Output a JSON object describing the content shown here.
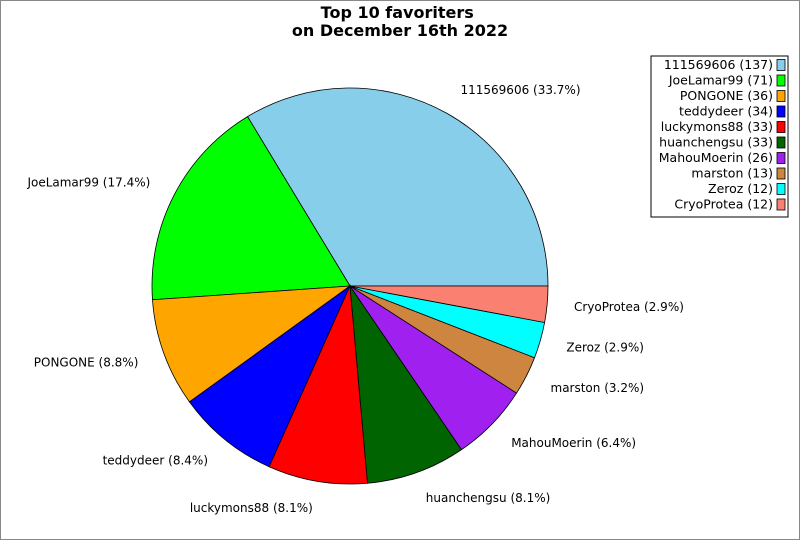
{
  "chart_data": {
    "type": "pie",
    "title": "Top 10 favoriters\non December 16th 2022",
    "slices": [
      {
        "name": "111569606",
        "value": 137,
        "percent_label": "111569606 (33.7%)",
        "legend_label": "111569606 (137)",
        "color": "#87ceeb"
      },
      {
        "name": "JoeLamar99",
        "value": 71,
        "percent_label": "JoeLamar99 (17.4%)",
        "legend_label": "JoeLamar99 (71)",
        "color": "#00ff00"
      },
      {
        "name": "PONGONE",
        "value": 36,
        "percent_label": "PONGONE (8.8%)",
        "legend_label": "PONGONE (36)",
        "color": "#ffa500"
      },
      {
        "name": "teddydeer",
        "value": 34,
        "percent_label": "teddydeer (8.4%)",
        "legend_label": "teddydeer (34)",
        "color": "#0000ff"
      },
      {
        "name": "luckymons88",
        "value": 33,
        "percent_label": "luckymons88 (8.1%)",
        "legend_label": "luckymons88 (33)",
        "color": "#ff0000"
      },
      {
        "name": "huanchengsu",
        "value": 33,
        "percent_label": "huanchengsu (8.1%)",
        "legend_label": "huanchengsu (33)",
        "color": "#006400"
      },
      {
        "name": "MahouMoerin",
        "value": 26,
        "percent_label": "MahouMoerin (6.4%)",
        "legend_label": "MahouMoerin (26)",
        "color": "#a020f0"
      },
      {
        "name": "marston",
        "value": 13,
        "percent_label": "marston (3.2%)",
        "legend_label": "marston (13)",
        "color": "#cd853f"
      },
      {
        "name": "Zeroz",
        "value": 12,
        "percent_label": "Zeroz (2.9%)",
        "legend_label": "Zeroz (12)",
        "color": "#00ffff"
      },
      {
        "name": "CryoProtea",
        "value": 12,
        "percent_label": "CryoProtea (2.9%)",
        "legend_label": "CryoProtea (12)",
        "color": "#fa8072"
      }
    ],
    "start_angle": "3 o'clock",
    "direction": "counterclockwise",
    "legend_position": "top-right"
  }
}
